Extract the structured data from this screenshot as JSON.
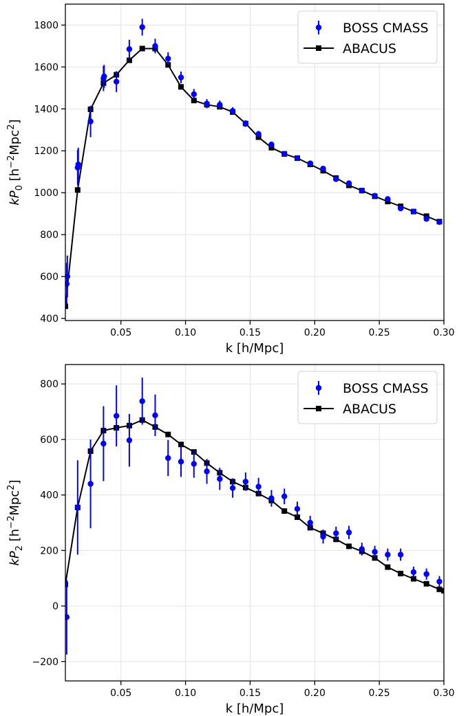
{
  "chart_data": [
    {
      "type": "scatter",
      "xlabel": "k [h/Mpc]",
      "ylabel_main": "kP",
      "ylabel_sub": "0",
      "ylabel_unit_prefix": " [h",
      "ylabel_unit_exp1": "−2",
      "ylabel_unit_mid": "Mpc",
      "ylabel_unit_exp2": "2",
      "ylabel_unit_suffix": "]",
      "xlim": [
        0.007,
        0.3
      ],
      "ylim": [
        390,
        1900
      ],
      "xticks": [
        0.05,
        0.1,
        0.15,
        0.2,
        0.25,
        0.3
      ],
      "xtick_labels": [
        "0.05",
        "0.10",
        "0.15",
        "0.20",
        "0.25",
        "0.30"
      ],
      "yticks": [
        400,
        600,
        800,
        1000,
        1200,
        1400,
        1600,
        1800
      ],
      "ytick_labels": [
        "400",
        "600",
        "800",
        "1000",
        "1200",
        "1400",
        "1600",
        "1800"
      ],
      "grid": true,
      "legend_position": "top-right",
      "series": [
        {
          "name": "BOSS CMASS",
          "kind": "errorbar",
          "color": "#0000ff",
          "x": [
            0.008,
            0.0085,
            0.0165,
            0.017,
            0.0265,
            0.0365,
            0.037,
            0.0465,
            0.0565,
            0.0665,
            0.0765,
            0.0865,
            0.0965,
            0.1065,
            0.1165,
            0.1265,
            0.1365,
            0.1465,
            0.1565,
            0.1665,
            0.1765,
            0.1865,
            0.1965,
            0.2065,
            0.2165,
            0.2265,
            0.2365,
            0.2465,
            0.2565,
            0.2665,
            0.2765,
            0.2865,
            0.2965
          ],
          "y": [
            565,
            600,
            1120,
            1135,
            1340,
            1545,
            1555,
            1530,
            1685,
            1790,
            1700,
            1640,
            1550,
            1470,
            1425,
            1420,
            1390,
            1330,
            1280,
            1230,
            1185,
            1165,
            1140,
            1115,
            1065,
            1045,
            1010,
            985,
            970,
            925,
            910,
            875,
            860
          ],
          "err": [
            100,
            100,
            85,
            80,
            75,
            60,
            55,
            50,
            45,
            40,
            35,
            30,
            28,
            25,
            22,
            20,
            18,
            16,
            15,
            14,
            13,
            12,
            11,
            11,
            11,
            10,
            10,
            10,
            10,
            10,
            10,
            10,
            10
          ]
        },
        {
          "name": "ABACUS",
          "kind": "line-marker",
          "color": "#000000",
          "x": [
            0.007,
            0.0165,
            0.0265,
            0.0365,
            0.0465,
            0.0565,
            0.0665,
            0.0765,
            0.0865,
            0.0965,
            0.1065,
            0.1165,
            0.1265,
            0.1365,
            0.1465,
            0.1565,
            0.1665,
            0.1765,
            0.1865,
            0.1965,
            0.2065,
            0.2165,
            0.2265,
            0.2365,
            0.2465,
            0.2565,
            0.2665,
            0.2765,
            0.2865,
            0.2965
          ],
          "y": [
            458,
            1013,
            1398,
            1523,
            1563,
            1632,
            1688,
            1688,
            1610,
            1505,
            1440,
            1420,
            1410,
            1385,
            1330,
            1265,
            1215,
            1185,
            1165,
            1135,
            1105,
            1070,
            1035,
            1010,
            983,
            958,
            935,
            910,
            888,
            862
          ]
        }
      ]
    },
    {
      "type": "scatter",
      "xlabel": "k [h/Mpc]",
      "ylabel_main": "kP",
      "ylabel_sub": "2",
      "ylabel_unit_prefix": " [h",
      "ylabel_unit_exp1": "−2",
      "ylabel_unit_mid": "Mpc",
      "ylabel_unit_exp2": "2",
      "ylabel_unit_suffix": "]",
      "xlim": [
        0.007,
        0.3
      ],
      "ylim": [
        -270,
        870
      ],
      "xticks": [
        0.05,
        0.1,
        0.15,
        0.2,
        0.25,
        0.3
      ],
      "xtick_labels": [
        "0.05",
        "0.10",
        "0.15",
        "0.20",
        "0.25",
        "0.30"
      ],
      "yticks": [
        -200,
        0,
        200,
        400,
        600,
        800
      ],
      "ytick_labels": [
        "−200",
        "0",
        "200",
        "400",
        "600",
        "800"
      ],
      "grid": true,
      "legend_position": "top-right",
      "series": [
        {
          "name": "BOSS CMASS",
          "kind": "errorbar",
          "color": "#0000ff",
          "x": [
            0.008,
            0.0165,
            0.0265,
            0.0365,
            0.0465,
            0.0565,
            0.0665,
            0.0765,
            0.0865,
            0.0965,
            0.1065,
            0.1165,
            0.1265,
            0.1365,
            0.1465,
            0.1565,
            0.1665,
            0.1765,
            0.1865,
            0.1965,
            0.2065,
            0.2165,
            0.2265,
            0.2365,
            0.2465,
            0.2565,
            0.2665,
            0.2765,
            0.2865,
            0.2965
          ],
          "y": [
            -40,
            355,
            440,
            585,
            685,
            597,
            738,
            687,
            533,
            520,
            512,
            485,
            458,
            425,
            448,
            430,
            388,
            395,
            350,
            300,
            250,
            262,
            265,
            205,
            195,
            185,
            185,
            122,
            115,
            88
          ],
          "err": [
            135,
            170,
            160,
            135,
            110,
            95,
            85,
            75,
            65,
            55,
            50,
            45,
            40,
            35,
            33,
            32,
            30,
            28,
            26,
            25,
            25,
            24,
            24,
            23,
            22,
            22,
            22,
            20,
            20,
            20
          ]
        },
        {
          "name": "ABACUS",
          "kind": "line-marker",
          "color": "#000000",
          "x": [
            0.007,
            0.0165,
            0.0265,
            0.0365,
            0.0465,
            0.0565,
            0.0665,
            0.0765,
            0.0865,
            0.0965,
            0.1065,
            0.1165,
            0.1265,
            0.1365,
            0.1465,
            0.1565,
            0.1665,
            0.1765,
            0.1865,
            0.1965,
            0.2065,
            0.2165,
            0.2265,
            0.2365,
            0.2465,
            0.2565,
            0.2665,
            0.2765,
            0.2865,
            0.2965,
            0.3
          ],
          "y": [
            78,
            355,
            558,
            632,
            642,
            650,
            670,
            645,
            618,
            582,
            555,
            515,
            480,
            448,
            427,
            405,
            380,
            342,
            320,
            282,
            262,
            240,
            215,
            197,
            173,
            140,
            117,
            98,
            80,
            60,
            55
          ]
        }
      ]
    }
  ]
}
